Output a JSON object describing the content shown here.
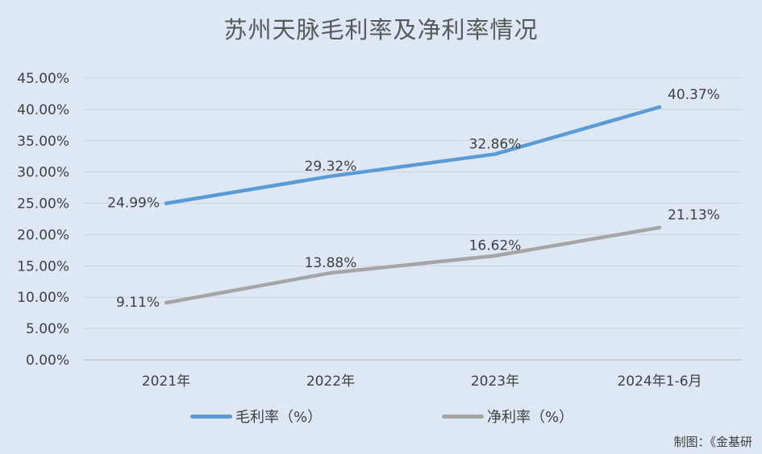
{
  "chart_data": {
    "type": "line",
    "title": "苏州天脉毛利率及净利率情况",
    "categories": [
      "2021年",
      "2022年",
      "2023年",
      "2024年1-6月"
    ],
    "y_ticks": [
      "0.00%",
      "5.00%",
      "10.00%",
      "15.00%",
      "20.00%",
      "25.00%",
      "30.00%",
      "35.00%",
      "40.00%",
      "45.00%"
    ],
    "ylim": [
      0,
      45
    ],
    "grid": true,
    "legend_position": "bottom",
    "series": [
      {
        "name": "毛利率（%）",
        "color": "#5b9bd5",
        "values": [
          24.99,
          29.32,
          32.86,
          40.37
        ],
        "labels": [
          "24.99%",
          "29.32%",
          "32.86%",
          "40.37%"
        ]
      },
      {
        "name": "净利率（%）",
        "color": "#a5a5a5",
        "values": [
          9.11,
          13.88,
          16.62,
          21.13
        ],
        "labels": [
          "9.11%",
          "13.88%",
          "16.62%",
          "21.13%"
        ]
      }
    ]
  },
  "credit": "制图：《金基研"
}
